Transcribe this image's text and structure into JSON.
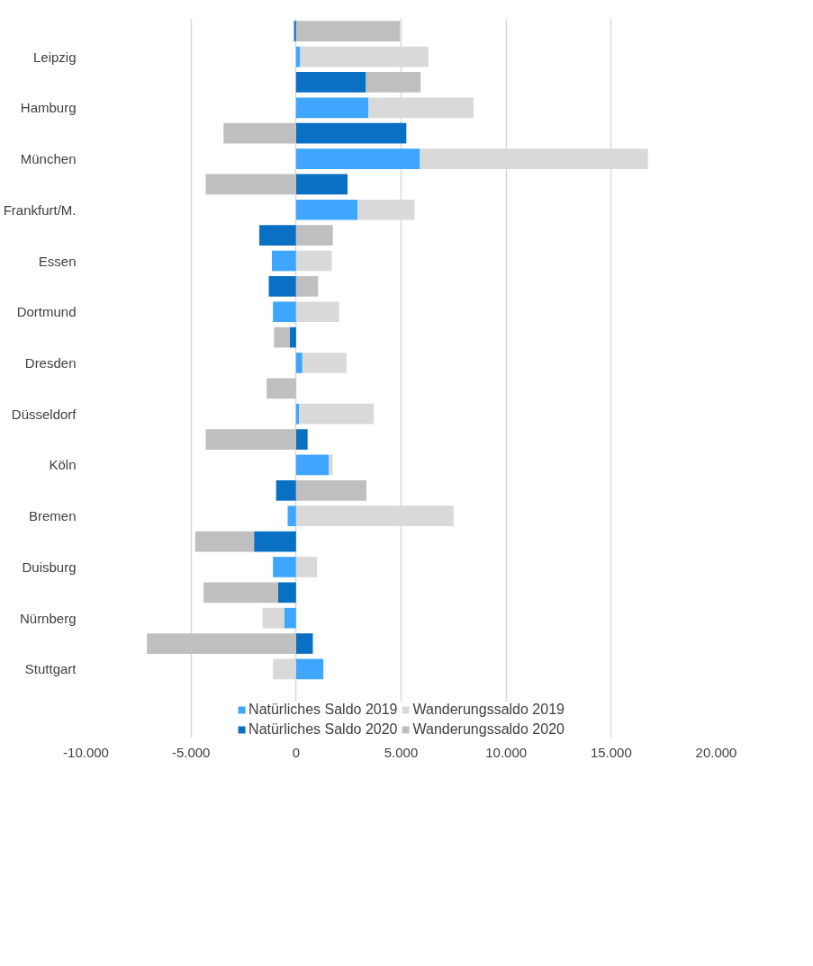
{
  "chart_data": {
    "type": "bar",
    "orientation": "horizontal",
    "stacked": true,
    "categories": [
      null,
      "Leipzig",
      null,
      "Hamburg",
      null,
      "München",
      null,
      "Frankfurt/M.",
      null,
      "Essen",
      null,
      "Dortmund",
      null,
      "Dresden",
      null,
      "Düsseldorf",
      null,
      "Köln",
      null,
      "Bremen",
      null,
      "Duisburg",
      null,
      "Nürnberg",
      null,
      "Stuttgart"
    ],
    "series": [
      {
        "name": "Natürliches Saldo 2019",
        "color": "#3ea6ff",
        "values": [
          null,
          200,
          null,
          3450,
          null,
          5900,
          null,
          2930,
          null,
          -1150,
          null,
          -1100,
          null,
          300,
          null,
          150,
          null,
          1550,
          null,
          -400,
          null,
          -1100,
          null,
          -550,
          null,
          1300
        ]
      },
      {
        "name": "Natürliches Saldo 2020",
        "color": "#0a70c4",
        "values": [
          -100,
          null,
          3330,
          null,
          5250,
          null,
          2450,
          null,
          -1750,
          null,
          -1300,
          null,
          -300,
          null,
          0,
          null,
          550,
          null,
          -950,
          null,
          -2000,
          null,
          -850,
          null,
          800,
          null
        ]
      },
      {
        "name": "Wanderungssaldo 2019",
        "color": "#d9d9d9",
        "values": [
          null,
          6100,
          null,
          5000,
          null,
          10850,
          null,
          2720,
          null,
          1700,
          null,
          2050,
          null,
          2100,
          null,
          3550,
          null,
          200,
          null,
          7500,
          null,
          1000,
          null,
          -1050,
          null,
          -1100
        ]
      },
      {
        "name": "Wanderungssaldo 2020",
        "color": "#bfbfbf",
        "values": [
          4950,
          null,
          2600,
          null,
          -3450,
          null,
          -4300,
          null,
          1750,
          null,
          1050,
          null,
          -750,
          null,
          -1400,
          null,
          -4300,
          null,
          3350,
          null,
          -2800,
          null,
          -3550,
          null,
          -7100,
          null
        ]
      }
    ],
    "xlim": [
      -10000,
      20000
    ],
    "xticks": [
      {
        "value": -10000,
        "label": "-10.000"
      },
      {
        "value": -5000,
        "label": "-5.000"
      },
      {
        "value": 0,
        "label": "0"
      },
      {
        "value": 5000,
        "label": "5.000"
      },
      {
        "value": 10000,
        "label": "10.000"
      },
      {
        "value": 15000,
        "label": "15.000"
      },
      {
        "value": 20000,
        "label": "20.000"
      }
    ],
    "grid": "x",
    "legend": "bottom"
  }
}
